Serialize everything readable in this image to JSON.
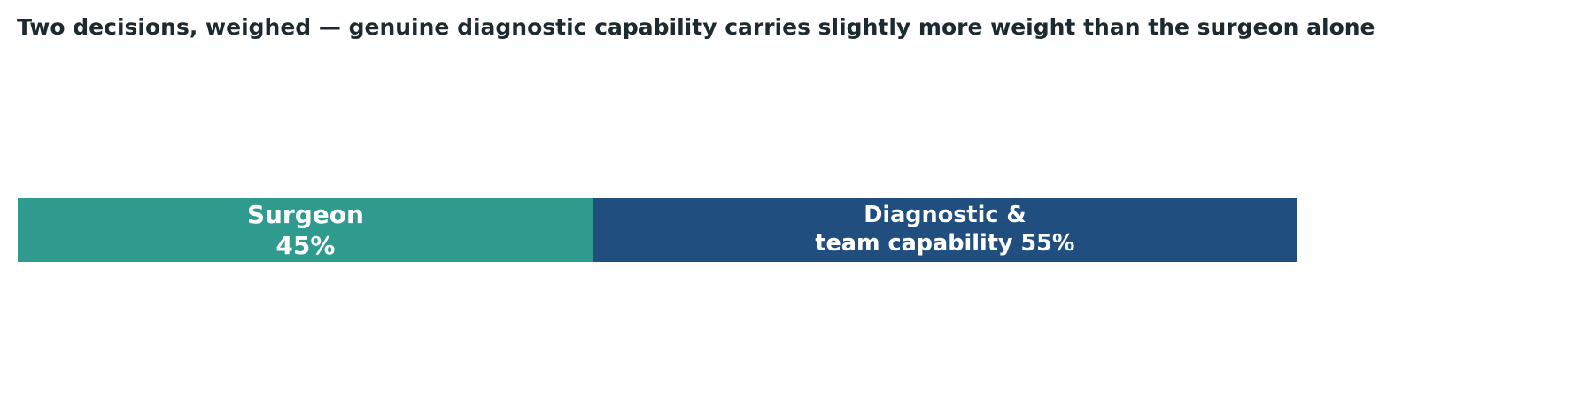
{
  "chart_data": {
    "type": "bar",
    "orientation": "horizontal",
    "stacked": true,
    "title": "Two decisions, weighed — genuine diagnostic capability carries slightly more weight than the surgeon alone",
    "series": [
      {
        "name": "Surgeon",
        "color": "#2e9b8e",
        "values": [
          45
        ],
        "value_labels": [
          "45%"
        ]
      },
      {
        "name": "Diagnostic &\nteam capability",
        "color": "#1f4e7f",
        "values": [
          55
        ],
        "value_labels": [
          "55%"
        ]
      }
    ]
  }
}
